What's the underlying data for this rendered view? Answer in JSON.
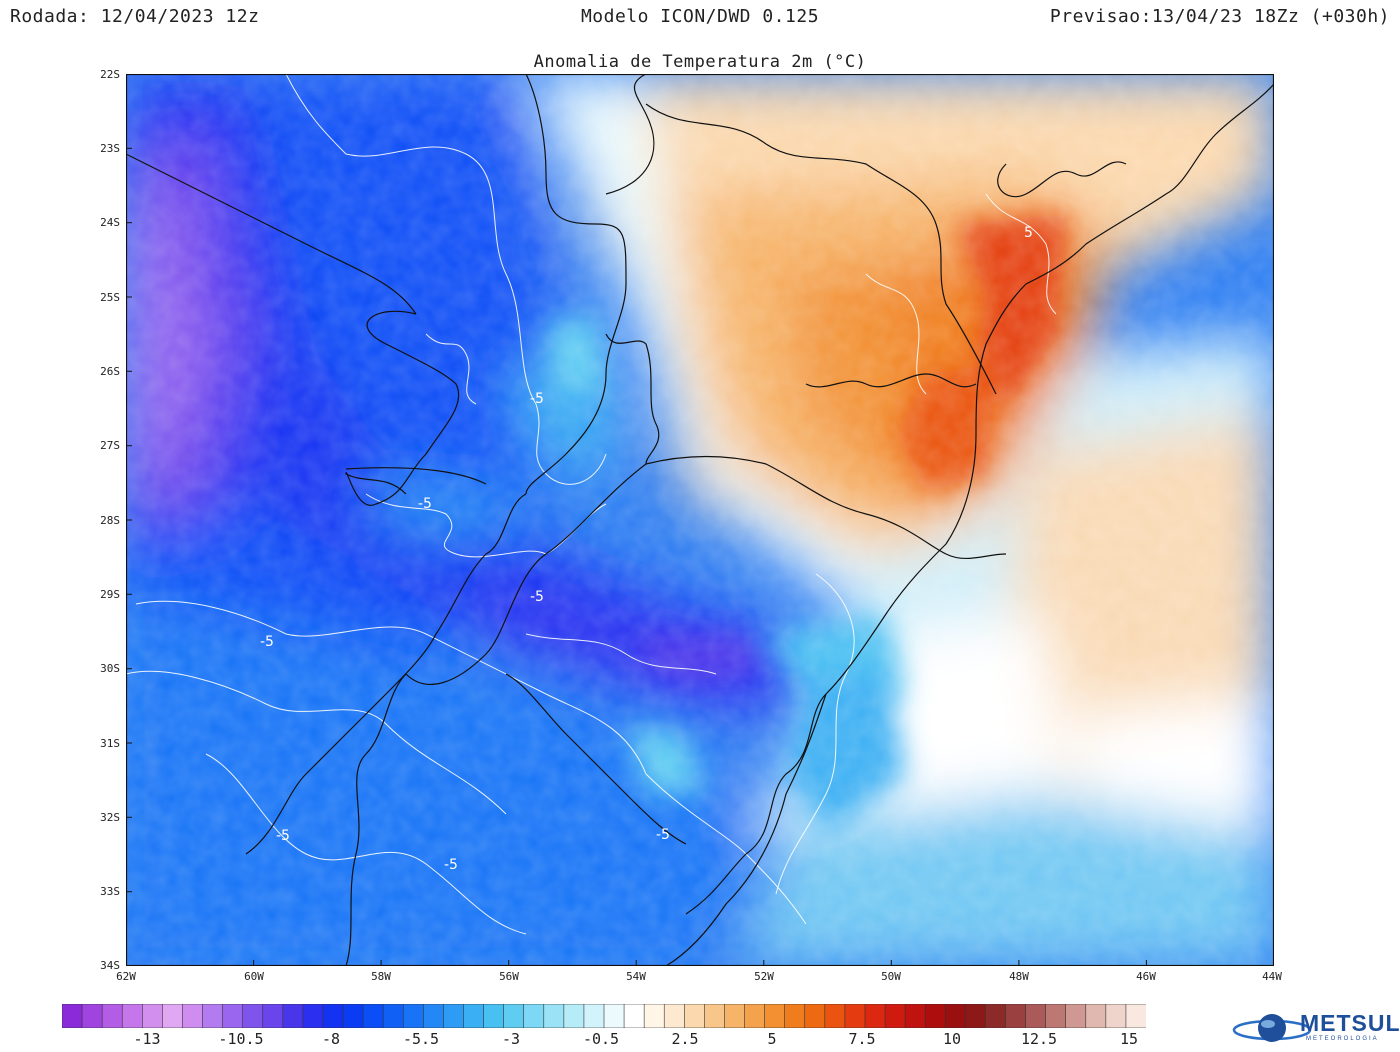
{
  "header": {
    "run": "Rodada: 12/04/2023 12z",
    "model": "Modelo ICON/DWD 0.125",
    "forecast": "Previsao:13/04/23 18Zz (+030h)"
  },
  "title": "Anomalia de Temperatura 2m (°C)",
  "axes": {
    "lat_labels": [
      "22S",
      "23S",
      "24S",
      "25S",
      "26S",
      "27S",
      "28S",
      "29S",
      "30S",
      "31S",
      "32S",
      "33S",
      "34S"
    ],
    "lon_labels": [
      "62W",
      "60W",
      "58W",
      "56W",
      "54W",
      "52W",
      "50W",
      "48W",
      "46W",
      "44W"
    ]
  },
  "contour_labels": [
    "-5",
    "-5",
    "-5",
    "-5",
    "-5",
    "-5",
    "-5",
    "-5",
    "5"
  ],
  "colorbar": {
    "tick_labels": [
      "-13",
      "-10.5",
      "-8",
      "-5.5",
      "-3",
      "-0.5",
      "2.5",
      "5",
      "7.5",
      "10",
      "12.5",
      "15"
    ],
    "colors": [
      "#8a2ad8",
      "#a044e0",
      "#b35ce6",
      "#c476ea",
      "#d38fee",
      "#e0a8f2",
      "#cf8df0",
      "#b37bf0",
      "#9a66ef",
      "#7f54ed",
      "#6a45ec",
      "#4a36ea",
      "#2b2ff0",
      "#1432f2",
      "#0a3cf4",
      "#0b4df6",
      "#1060f6",
      "#1873f6",
      "#2388f5",
      "#2e9cf4",
      "#3aaff3",
      "#49c0f2",
      "#5fcdf2",
      "#7cd8f4",
      "#9ae2f6",
      "#b6ebf8",
      "#d2f3fb",
      "#ecfafd",
      "#ffffff",
      "#fff6e8",
      "#fde9cf",
      "#fbd8ad",
      "#f8c68a",
      "#f6b469",
      "#f4a24c",
      "#f29032",
      "#f07d1d",
      "#ee6a12",
      "#ea5310",
      "#e43c10",
      "#dc2810",
      "#cf1a10",
      "#c0120f",
      "#ad0d0d",
      "#9a0f10",
      "#8d1818",
      "#8c2a2a",
      "#9a4040",
      "#aa5a58",
      "#bd7874",
      "#cf9892",
      "#e0b8b0",
      "#efd4cc",
      "#f8e8e0"
    ]
  },
  "logo": {
    "name": "METSUL",
    "sub": "METEOROLOGIA"
  }
}
